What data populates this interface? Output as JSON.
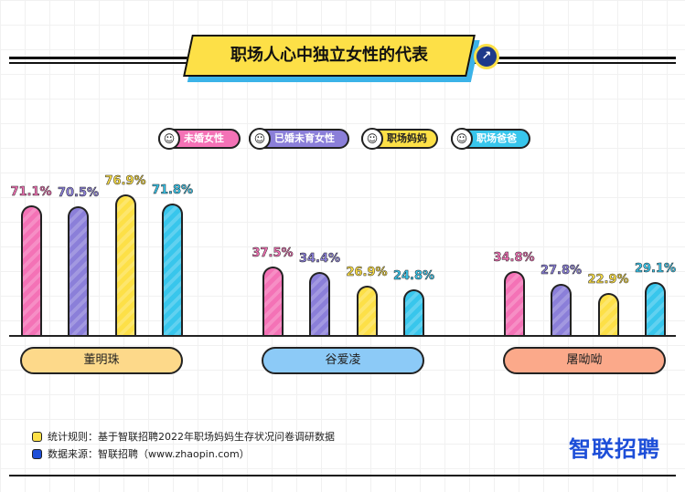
{
  "title": "职场人心中独立女性的代表",
  "chart_data": {
    "type": "bar",
    "title": "职场人心中独立女性的代表",
    "categories": [
      "董明珠",
      "谷爱凌",
      "屠呦呦"
    ],
    "series": [
      {
        "name": "未婚女性",
        "color": "#f472b6",
        "values": [
          71.1,
          37.5,
          34.8
        ],
        "labels": [
          "71.1%",
          "37.5%",
          "34.8%"
        ]
      },
      {
        "name": "已婚未育女性",
        "color": "#8b7fd9",
        "values": [
          70.5,
          34.4,
          27.8
        ],
        "labels": [
          "70.5%",
          "34.4%",
          "27.8%"
        ]
      },
      {
        "name": "职场妈妈",
        "color": "#fde047",
        "values": [
          76.9,
          26.9,
          22.9
        ],
        "labels": [
          "76.9%",
          "26.9%",
          "22.9%"
        ]
      },
      {
        "name": "职场爸爸",
        "color": "#38c6ec",
        "values": [
          71.8,
          24.8,
          29.1
        ],
        "labels": [
          "71.8%",
          "24.8%",
          "29.1%"
        ]
      }
    ],
    "category_colors": [
      "#fdd98a",
      "#8ccaf7",
      "#fba98a"
    ],
    "ylim": [
      0,
      80
    ],
    "legend": "top-center"
  },
  "notes": {
    "rule": "统计规则：基于智联招聘2022年职场妈妈生存状况问卷调研数据",
    "source": "数据来源：智联招聘（www.zhaopin.com）"
  },
  "logo": "智联招聘"
}
